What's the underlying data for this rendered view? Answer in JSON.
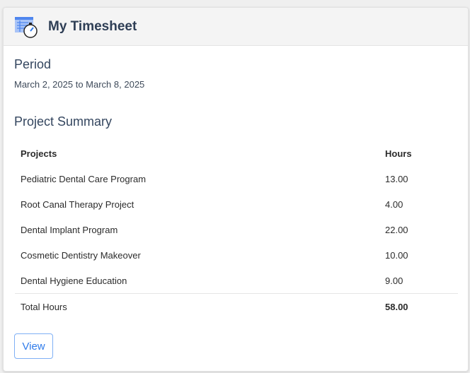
{
  "header": {
    "title": "My Timesheet",
    "icon": "timesheet-stopwatch-icon"
  },
  "period": {
    "heading": "Period",
    "value": "March 2, 2025 to March 8, 2025"
  },
  "summary": {
    "heading": "Project Summary",
    "columns": [
      "Projects",
      "Hours"
    ],
    "rows": [
      {
        "project": "Pediatric Dental Care Program",
        "hours": "13.00"
      },
      {
        "project": "Root Canal Therapy Project",
        "hours": "4.00"
      },
      {
        "project": "Dental Implant Program",
        "hours": "22.00"
      },
      {
        "project": "Cosmetic Dentistry Makeover",
        "hours": "10.00"
      },
      {
        "project": "Dental Hygiene Education",
        "hours": "9.00"
      }
    ],
    "total_label": "Total Hours",
    "total_value": "58.00"
  },
  "actions": {
    "view_label": "View"
  },
  "colors": {
    "accent": "#2f7bea",
    "heading": "#34465f"
  }
}
